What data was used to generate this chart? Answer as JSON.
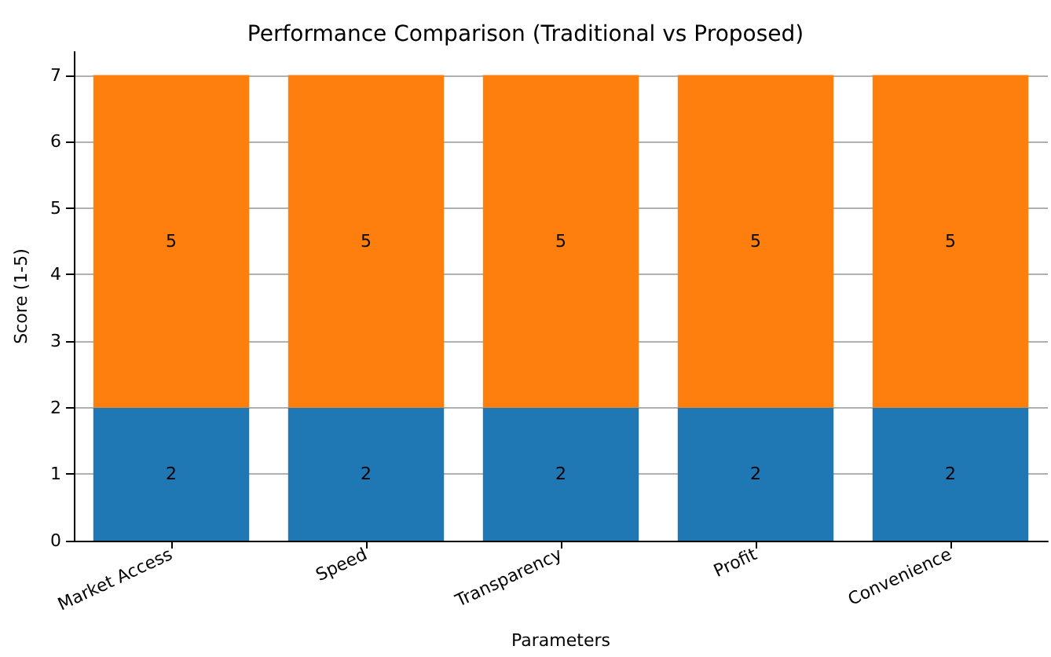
{
  "chart_data": {
    "type": "bar",
    "title": "Performance Comparison (Traditional vs Proposed)",
    "xlabel": "Parameters",
    "ylabel": "Score (1-5)",
    "categories": [
      "Market Access",
      "Speed",
      "Transparency",
      "Profit",
      "Convenience"
    ],
    "series": [
      {
        "color": "#1f77b4",
        "values": [
          2,
          2,
          2,
          2,
          2
        ]
      },
      {
        "color": "#ff7f0e",
        "values": [
          5,
          5,
          5,
          5,
          5
        ]
      }
    ],
    "stacked": true,
    "data_labels": true,
    "grid": "y",
    "ylim": [
      0,
      7.35
    ],
    "yticks": [
      0,
      1,
      2,
      3,
      4,
      5,
      6,
      7
    ]
  }
}
